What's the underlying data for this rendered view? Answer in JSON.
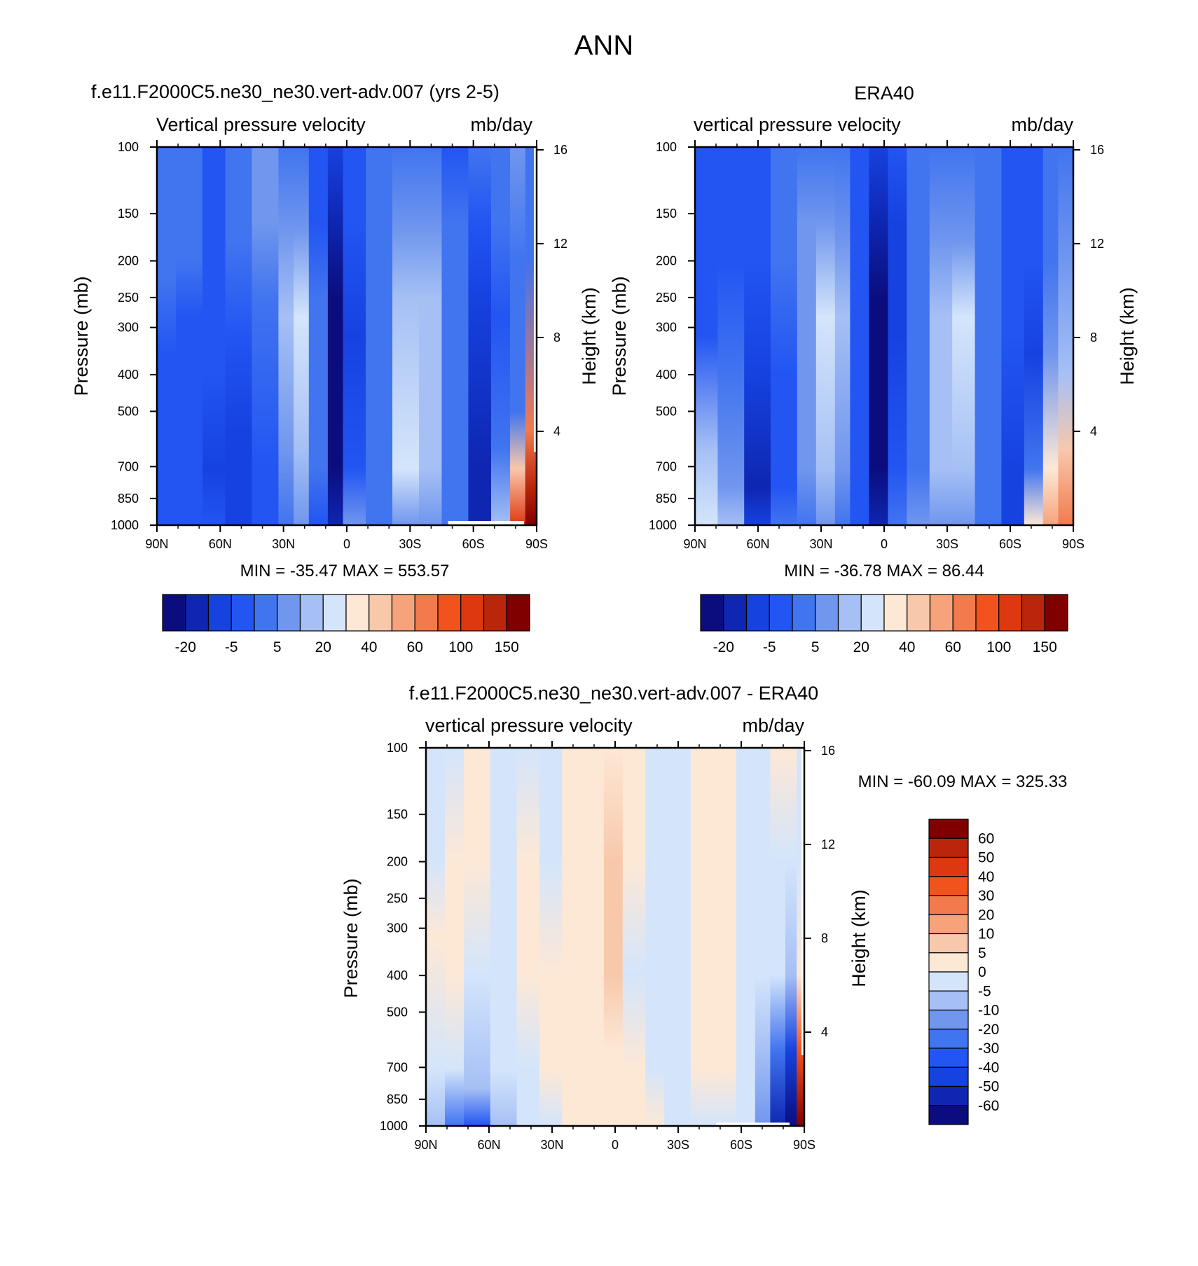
{
  "figure": {
    "title": "ANN"
  },
  "colors": {
    "bg": "#ffffff",
    "axis": "#000000"
  },
  "palettes": {
    "main": [
      "#0b0d7e",
      "#0e26b1",
      "#1642e0",
      "#2255f2",
      "#4174ef",
      "#7096ee",
      "#a6c0f5",
      "#d4e5fb",
      "#fde8d6",
      "#f8c8ab",
      "#f6a37b",
      "#f27a4d",
      "#f2521d",
      "#de3811",
      "#b9260b",
      "#800000"
    ],
    "diff": [
      "#0b0d7e",
      "#0e26b1",
      "#1642e0",
      "#2255f2",
      "#4174ef",
      "#7096ee",
      "#a6c0f5",
      "#d4e5fb",
      "#fde8d6",
      "#f8c8ab",
      "#f6a37b",
      "#f27a4d",
      "#f2521d",
      "#de3811",
      "#b9260b",
      "#800000"
    ]
  },
  "chart_data": [
    {
      "type": "heatmap",
      "id": "model",
      "title": "f.e11.F2000C5.ne30_ne30.vert-adv.007 (yrs 2-5)",
      "left_string": "Vertical pressure velocity",
      "right_string": "mb/day",
      "xlabel": "",
      "ylabel": "Pressure (mb)",
      "ylabel_right": "Height (km)",
      "x_ticks": [
        "90N",
        "60N",
        "30N",
        "0",
        "30S",
        "60S",
        "90S"
      ],
      "x_range": [
        90,
        -90
      ],
      "y_ticks": [
        100,
        150,
        200,
        250,
        300,
        400,
        500,
        700,
        850,
        1000
      ],
      "y_range": [
        100,
        1000
      ],
      "height_ticks": [
        16,
        12,
        8,
        4
      ],
      "min_max_text": "MIN = -35.47  MAX = 553.57",
      "min": -35.47,
      "max": 553.57,
      "colorbar": {
        "orientation": "horizontal",
        "labels": [
          "-20",
          "-5",
          "5",
          "20",
          "40",
          "60",
          "100",
          "150"
        ],
        "boxes": 16
      },
      "missing_region": {
        "lat": [
          -48,
          -84
        ],
        "p": [
          975,
          1000
        ]
      },
      "features": [
        {
          "lat": 90,
          "p": 500,
          "value": -2
        },
        {
          "lat": 55,
          "p": 450,
          "value": -6
        },
        {
          "lat": 28,
          "p": 450,
          "value": 8
        },
        {
          "lat": 7,
          "p": 450,
          "value": -22
        },
        {
          "lat": -28,
          "p": 550,
          "value": 12
        },
        {
          "lat": -58,
          "p": 400,
          "value": -10
        },
        {
          "lat": -78,
          "p": 800,
          "value": 120
        }
      ]
    },
    {
      "type": "heatmap",
      "id": "obs",
      "title": "ERA40",
      "left_string": "vertical pressure velocity",
      "right_string": "mb/day",
      "xlabel": "",
      "ylabel": "Pressure (mb)",
      "ylabel_right": "Height (km)",
      "x_ticks": [
        "90N",
        "60N",
        "30N",
        "0",
        "30S",
        "60S",
        "90S"
      ],
      "x_range": [
        90,
        -90
      ],
      "y_ticks": [
        100,
        150,
        200,
        250,
        300,
        400,
        500,
        700,
        850,
        1000
      ],
      "y_range": [
        100,
        1000
      ],
      "height_ticks": [
        16,
        12,
        8,
        4
      ],
      "min_max_text": "MIN = -36.78  MAX =  86.44",
      "min": -36.78,
      "max": 86.44,
      "colorbar": {
        "orientation": "horizontal",
        "labels": [
          "-20",
          "-5",
          "5",
          "20",
          "40",
          "60",
          "100",
          "150"
        ],
        "boxes": 16
      },
      "features": [
        {
          "lat": 88,
          "p": 900,
          "value": 20
        },
        {
          "lat": 58,
          "p": 600,
          "value": -8
        },
        {
          "lat": 28,
          "p": 450,
          "value": 15
        },
        {
          "lat": 6,
          "p": 450,
          "value": -25
        },
        {
          "lat": -28,
          "p": 500,
          "value": 15
        },
        {
          "lat": -58,
          "p": 500,
          "value": -10
        },
        {
          "lat": -78,
          "p": 900,
          "value": 60
        }
      ]
    },
    {
      "type": "heatmap",
      "id": "diff",
      "title": "f.e11.F2000C5.ne30_ne30.vert-adv.007 - ERA40",
      "left_string": "vertical pressure velocity",
      "right_string": "mb/day",
      "xlabel": "",
      "ylabel": "Pressure (mb)",
      "ylabel_right": "Height (km)",
      "x_ticks": [
        "90N",
        "60N",
        "30N",
        "0",
        "30S",
        "60S",
        "90S"
      ],
      "x_range": [
        90,
        -90
      ],
      "y_ticks": [
        100,
        150,
        200,
        250,
        300,
        400,
        500,
        700,
        850,
        1000
      ],
      "y_range": [
        100,
        1000
      ],
      "height_ticks": [
        16,
        12,
        8,
        4
      ],
      "min_max_text": "MIN = -60.09  MAX = 325.33",
      "min": -60.09,
      "max": 325.33,
      "colorbar": {
        "orientation": "vertical",
        "labels": [
          "60",
          "50",
          "40",
          "30",
          "20",
          "10",
          "5",
          "0",
          "-5",
          "-10",
          "-20",
          "-30",
          "-40",
          "-50",
          "-60"
        ],
        "boxes": 16
      },
      "missing_region": {
        "lat": [
          -48,
          -83
        ],
        "p": [
          980,
          1000
        ]
      },
      "features": [
        {
          "lat": 80,
          "p": 600,
          "value": 2
        },
        {
          "lat": 45,
          "p": 500,
          "value": 2
        },
        {
          "lat": 0,
          "p": 450,
          "value": 12
        },
        {
          "lat": -10,
          "p": 500,
          "value": -3
        },
        {
          "lat": -75,
          "p": 900,
          "value": -40
        },
        {
          "lat": -87,
          "p": 800,
          "value": 60
        }
      ]
    }
  ]
}
